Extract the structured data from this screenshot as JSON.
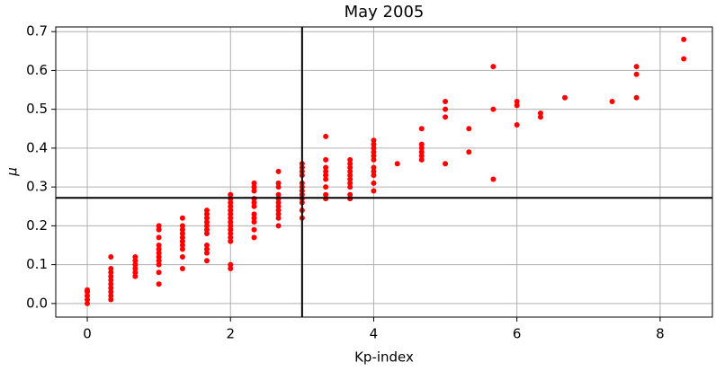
{
  "chart_data": {
    "type": "scatter",
    "title": "May 2005",
    "xlabel": "Kp-index",
    "ylabel": "μ",
    "grid": true,
    "color": "#ff0000",
    "vline": 3.0,
    "hline": 0.272,
    "xlim": [
      -0.44,
      8.73
    ],
    "ylim": [
      -0.035,
      0.712
    ],
    "xticks": [
      0,
      2,
      4,
      6,
      8
    ],
    "yticks": [
      {
        "value": 0,
        "label": "0.0"
      },
      0.1,
      0.2,
      0.3,
      0.4,
      0.5,
      0.6,
      0.7
    ],
    "x": [
      0,
      0,
      0,
      0,
      0,
      0.33,
      0.33,
      0.33,
      0.33,
      0.33,
      0.33,
      0.33,
      0.33,
      0.33,
      0.33,
      0.67,
      0.67,
      0.67,
      0.67,
      0.67,
      0.67,
      1,
      1,
      1,
      1,
      1,
      1,
      1,
      1,
      1,
      1,
      1,
      1.33,
      1.33,
      1.33,
      1.33,
      1.33,
      1.33,
      1.33,
      1.33,
      1.33,
      1.33,
      1.67,
      1.67,
      1.67,
      1.67,
      1.67,
      1.67,
      1.67,
      1.67,
      1.67,
      1.67,
      1.67,
      2,
      2,
      2,
      2,
      2,
      2,
      2,
      2,
      2,
      2,
      2,
      2,
      2,
      2,
      2,
      2.33,
      2.33,
      2.33,
      2.33,
      2.33,
      2.33,
      2.33,
      2.33,
      2.33,
      2.33,
      2.33,
      2.67,
      2.67,
      2.67,
      2.67,
      2.67,
      2.67,
      2.67,
      2.67,
      2.67,
      2.67,
      2.67,
      3,
      3,
      3,
      3,
      3,
      3,
      3,
      3,
      3,
      3,
      3,
      3,
      3.33,
      3.33,
      3.33,
      3.33,
      3.33,
      3.33,
      3.33,
      3.33,
      3.33,
      3.67,
      3.67,
      3.67,
      3.67,
      3.67,
      3.67,
      3.67,
      3.67,
      3.67,
      3.67,
      4,
      4,
      4,
      4,
      4,
      4,
      4,
      4,
      4,
      4,
      4,
      4.33,
      4.67,
      4.67,
      4.67,
      4.67,
      4.67,
      4.67,
      5,
      5,
      5,
      5,
      5.33,
      5.33,
      5.67,
      5.67,
      5.67,
      6,
      6,
      6,
      6.33,
      6.33,
      6.67,
      7.33,
      7.67,
      7.67,
      7.67,
      8.33,
      8.33
    ],
    "y": [
      0.0,
      0.01,
      0.02,
      0.03,
      0.035,
      0.01,
      0.02,
      0.03,
      0.04,
      0.05,
      0.06,
      0.07,
      0.08,
      0.09,
      0.12,
      0.07,
      0.08,
      0.09,
      0.1,
      0.11,
      0.12,
      0.05,
      0.08,
      0.1,
      0.11,
      0.12,
      0.13,
      0.14,
      0.15,
      0.17,
      0.19,
      0.2,
      0.09,
      0.12,
      0.14,
      0.15,
      0.16,
      0.17,
      0.18,
      0.19,
      0.2,
      0.22,
      0.11,
      0.13,
      0.14,
      0.15,
      0.18,
      0.19,
      0.2,
      0.21,
      0.22,
      0.23,
      0.24,
      0.09,
      0.1,
      0.16,
      0.17,
      0.18,
      0.19,
      0.2,
      0.21,
      0.22,
      0.23,
      0.24,
      0.25,
      0.26,
      0.27,
      0.28,
      0.17,
      0.19,
      0.21,
      0.22,
      0.23,
      0.25,
      0.26,
      0.27,
      0.29,
      0.3,
      0.31,
      0.2,
      0.22,
      0.23,
      0.24,
      0.25,
      0.26,
      0.27,
      0.28,
      0.3,
      0.31,
      0.34,
      0.22,
      0.24,
      0.26,
      0.27,
      0.28,
      0.29,
      0.3,
      0.31,
      0.33,
      0.34,
      0.35,
      0.36,
      0.27,
      0.28,
      0.3,
      0.32,
      0.33,
      0.34,
      0.35,
      0.37,
      0.43,
      0.27,
      0.28,
      0.3,
      0.31,
      0.32,
      0.33,
      0.34,
      0.35,
      0.36,
      0.37,
      0.29,
      0.31,
      0.33,
      0.34,
      0.35,
      0.37,
      0.38,
      0.39,
      0.4,
      0.41,
      0.42,
      0.36,
      0.37,
      0.38,
      0.39,
      0.4,
      0.41,
      0.45,
      0.36,
      0.48,
      0.5,
      0.52,
      0.39,
      0.45,
      0.32,
      0.5,
      0.61,
      0.46,
      0.51,
      0.52,
      0.48,
      0.49,
      0.53,
      0.52,
      0.53,
      0.59,
      0.61,
      0.63,
      0.68
    ]
  }
}
